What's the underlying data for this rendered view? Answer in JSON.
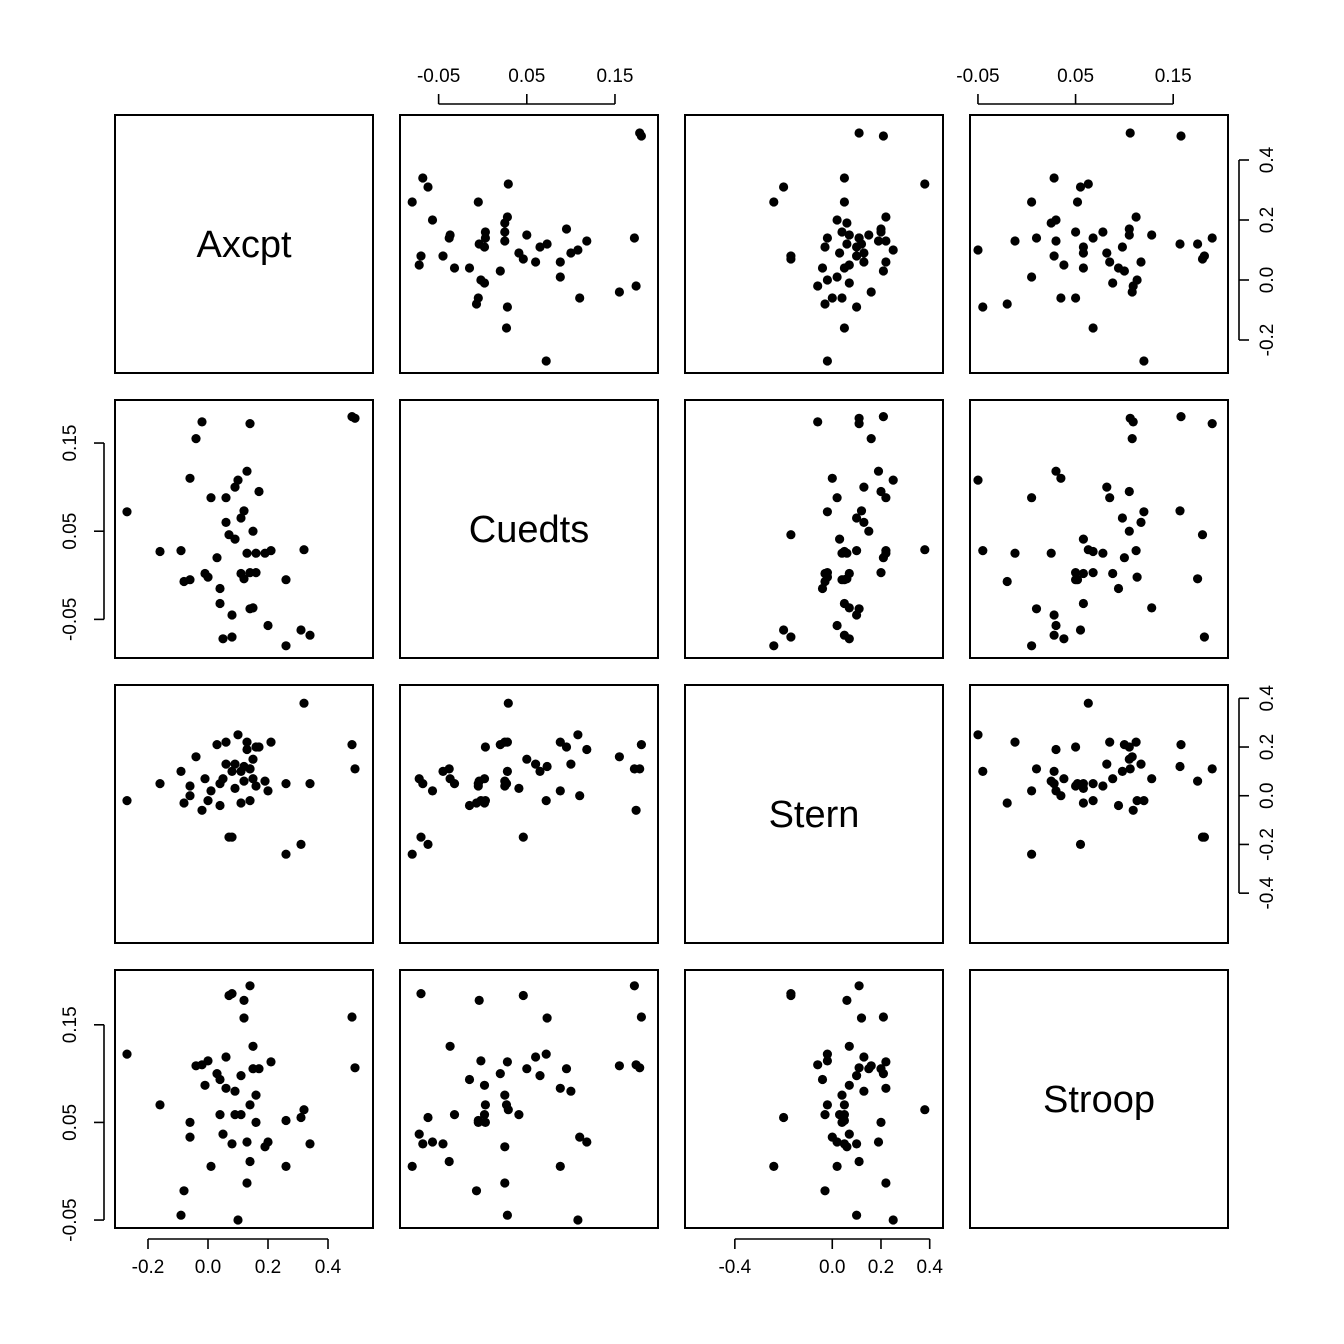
{
  "chart_data": {
    "type": "scatter",
    "variables": [
      "Axcpt",
      "Cuedts",
      "Stern",
      "Stroop"
    ],
    "axes": {
      "Axcpt": {
        "ticks": [
          -0.2,
          0.0,
          0.2,
          0.4
        ],
        "tick_labels": [
          "-0.2",
          "0.0",
          "0.2",
          "0.4"
        ],
        "range": [
          -0.29,
          0.53
        ]
      },
      "Cuedts": {
        "ticks": [
          -0.05,
          0.05,
          0.15
        ],
        "tick_labels": [
          "-0.05",
          "0.05",
          "0.15"
        ],
        "range": [
          -0.087,
          0.192
        ]
      },
      "Stern": {
        "ticks": [
          -0.4,
          0.0,
          0.2,
          0.4
        ],
        "tick_labels": [
          "-0.4",
          "0.0",
          "0.2",
          "0.4"
        ],
        "tick_labels_all": [
          "-0.4",
          "-0.2",
          "0.0",
          "0.2",
          "0.4"
        ],
        "range": [
          -0.58,
          0.43
        ]
      },
      "Stroop": {
        "ticks": [
          -0.05,
          0.05,
          0.15
        ],
        "tick_labels": [
          "-0.05",
          "0.05",
          "0.15"
        ],
        "range": [
          -0.052,
          0.2
        ]
      }
    },
    "observations": [
      {
        "Axcpt": 0.48,
        "Cuedts": 0.18,
        "Stern": 0.21,
        "Stroop": 0.158
      },
      {
        "Axcpt": 0.49,
        "Cuedts": 0.178,
        "Stern": 0.11,
        "Stroop": 0.106
      },
      {
        "Axcpt": 0.34,
        "Cuedts": -0.068,
        "Stern": 0.05,
        "Stroop": 0.028
      },
      {
        "Axcpt": 0.32,
        "Cuedts": 0.029,
        "Stern": 0.38,
        "Stroop": 0.063
      },
      {
        "Axcpt": 0.31,
        "Cuedts": -0.062,
        "Stern": -0.2,
        "Stroop": 0.055
      },
      {
        "Axcpt": 0.26,
        "Cuedts": -0.08,
        "Stern": -0.24,
        "Stroop": 0.005
      },
      {
        "Axcpt": 0.26,
        "Cuedts": -0.005,
        "Stern": 0.05,
        "Stroop": 0.052
      },
      {
        "Axcpt": 0.21,
        "Cuedts": 0.028,
        "Stern": 0.22,
        "Stroop": 0.112
      },
      {
        "Axcpt": 0.2,
        "Cuedts": -0.057,
        "Stern": 0.02,
        "Stroop": 0.03
      },
      {
        "Axcpt": -0.27,
        "Cuedts": 0.072,
        "Stern": -0.02,
        "Stroop": 0.12
      },
      {
        "Axcpt": -0.16,
        "Cuedts": 0.027,
        "Stern": 0.05,
        "Stroop": 0.068
      },
      {
        "Axcpt": -0.09,
        "Cuedts": 0.028,
        "Stern": 0.1,
        "Stroop": -0.045
      },
      {
        "Axcpt": -0.04,
        "Cuedts": 0.155,
        "Stern": 0.16,
        "Stroop": 0.108
      },
      {
        "Axcpt": -0.02,
        "Cuedts": 0.174,
        "Stern": -0.06,
        "Stroop": 0.109
      },
      {
        "Axcpt": 0.14,
        "Cuedts": 0.172,
        "Stern": 0.11,
        "Stroop": 0.19
      },
      {
        "Axcpt": 0.08,
        "Cuedts": -0.07,
        "Stern": -0.17,
        "Stroop": 0.182
      },
      {
        "Axcpt": -0.06,
        "Cuedts": 0.11,
        "Stern": 0.0,
        "Stroop": 0.035
      },
      {
        "Axcpt": -0.08,
        "Cuedts": -0.007,
        "Stern": -0.03,
        "Stroop": -0.02
      },
      {
        "Axcpt": -0.06,
        "Cuedts": -0.005,
        "Stern": 0.04,
        "Stroop": 0.05
      },
      {
        "Axcpt": -0.01,
        "Cuedts": 0.002,
        "Stern": 0.07,
        "Stroop": 0.088
      },
      {
        "Axcpt": 0.0,
        "Cuedts": -0.002,
        "Stern": -0.02,
        "Stroop": 0.113
      },
      {
        "Axcpt": 0.01,
        "Cuedts": 0.088,
        "Stern": 0.02,
        "Stroop": 0.005
      },
      {
        "Axcpt": 0.03,
        "Cuedts": 0.02,
        "Stern": 0.21,
        "Stroop": 0.1
      },
      {
        "Axcpt": 0.04,
        "Cuedts": -0.015,
        "Stern": -0.04,
        "Stroop": 0.094
      },
      {
        "Axcpt": 0.04,
        "Cuedts": -0.032,
        "Stern": 0.05,
        "Stroop": 0.058
      },
      {
        "Axcpt": 0.05,
        "Cuedts": -0.072,
        "Stern": 0.07,
        "Stroop": 0.038
      },
      {
        "Axcpt": 0.06,
        "Cuedts": 0.06,
        "Stern": 0.13,
        "Stroop": 0.117
      },
      {
        "Axcpt": 0.06,
        "Cuedts": 0.088,
        "Stern": 0.22,
        "Stroop": 0.085
      },
      {
        "Axcpt": 0.07,
        "Cuedts": 0.046,
        "Stern": -0.17,
        "Stroop": 0.18
      },
      {
        "Axcpt": 0.08,
        "Cuedts": -0.045,
        "Stern": 0.1,
        "Stroop": 0.028
      },
      {
        "Axcpt": 0.09,
        "Cuedts": 0.041,
        "Stern": 0.03,
        "Stroop": 0.058
      },
      {
        "Axcpt": 0.09,
        "Cuedts": 0.1,
        "Stern": 0.13,
        "Stroop": 0.082
      },
      {
        "Axcpt": 0.1,
        "Cuedts": 0.108,
        "Stern": 0.25,
        "Stroop": -0.05
      },
      {
        "Axcpt": 0.11,
        "Cuedts": 0.002,
        "Stern": -0.03,
        "Stroop": 0.058
      },
      {
        "Axcpt": 0.11,
        "Cuedts": 0.065,
        "Stern": 0.1,
        "Stroop": 0.098
      },
      {
        "Axcpt": 0.12,
        "Cuedts": 0.073,
        "Stern": 0.12,
        "Stroop": 0.157
      },
      {
        "Axcpt": 0.12,
        "Cuedts": -0.004,
        "Stern": 0.06,
        "Stroop": 0.175
      },
      {
        "Axcpt": 0.13,
        "Cuedts": 0.118,
        "Stern": 0.19,
        "Stroop": 0.03
      },
      {
        "Axcpt": 0.13,
        "Cuedts": 0.025,
        "Stern": 0.22,
        "Stroop": -0.012
      },
      {
        "Axcpt": 0.14,
        "Cuedts": -0.038,
        "Stern": 0.11,
        "Stroop": 0.01
      },
      {
        "Axcpt": 0.14,
        "Cuedts": 0.003,
        "Stern": -0.02,
        "Stroop": 0.068
      },
      {
        "Axcpt": 0.15,
        "Cuedts": 0.05,
        "Stern": 0.15,
        "Stroop": 0.105
      },
      {
        "Axcpt": 0.15,
        "Cuedts": -0.037,
        "Stern": 0.07,
        "Stroop": 0.128
      },
      {
        "Axcpt": 0.16,
        "Cuedts": 0.003,
        "Stern": 0.2,
        "Stroop": 0.05
      },
      {
        "Axcpt": 0.16,
        "Cuedts": 0.025,
        "Stern": 0.04,
        "Stroop": 0.078
      },
      {
        "Axcpt": 0.17,
        "Cuedts": 0.095,
        "Stern": 0.2,
        "Stroop": 0.105
      },
      {
        "Axcpt": 0.19,
        "Cuedts": 0.025,
        "Stern": 0.06,
        "Stroop": 0.025
      }
    ]
  }
}
